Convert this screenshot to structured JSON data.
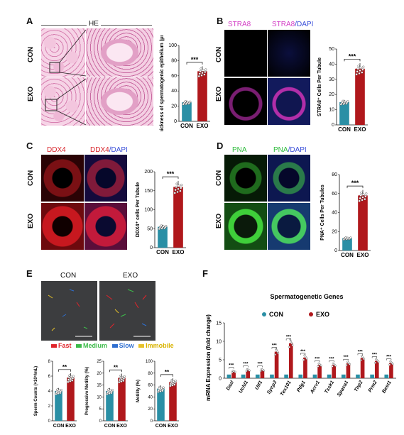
{
  "panels": {
    "A": {
      "label": "A",
      "header": "HE",
      "rows": [
        "CON",
        "EXO"
      ]
    },
    "B": {
      "label": "B",
      "cols": [
        "STRA8",
        "STRA8/DAPI"
      ],
      "rows": [
        "CON",
        "EXO"
      ]
    },
    "C": {
      "label": "C",
      "cols": [
        "DDX4",
        "DDX4/DAPI"
      ],
      "rows": [
        "CON",
        "EXO"
      ]
    },
    "D": {
      "label": "D",
      "cols": [
        "PNA",
        "PNA/DAPI"
      ],
      "rows": [
        "CON",
        "EXO"
      ]
    },
    "E": {
      "label": "E",
      "cols": [
        "CON",
        "EXO"
      ],
      "legend": [
        "Fast",
        "Medium",
        "Slow",
        "Immobile"
      ]
    },
    "F": {
      "label": "F"
    }
  },
  "colors": {
    "con": "#2a8fa5",
    "exo": "#b0181c",
    "fast": "#e0242b",
    "medium": "#3dbb4a",
    "slow": "#2f6fd0",
    "immobile": "#e7c22a"
  },
  "chart_data": [
    {
      "id": "A",
      "type": "bar",
      "ylabel": "Thickness of spermatogenic epithelium (μm)",
      "categories": [
        "CON",
        "EXO"
      ],
      "values": [
        25,
        66
      ],
      "ylim": [
        0,
        100
      ],
      "yticks": [
        0,
        20,
        40,
        60,
        80,
        100
      ],
      "sig": "***"
    },
    {
      "id": "B",
      "type": "bar",
      "ylabel": "STRA8⁺ Cells Per Tubule",
      "categories": [
        "CON",
        "EXO"
      ],
      "values": [
        15,
        37
      ],
      "ylim": [
        0,
        50
      ],
      "yticks": [
        0,
        10,
        20,
        30,
        40,
        50
      ],
      "sig": "***"
    },
    {
      "id": "C",
      "type": "bar",
      "ylabel": "DDX4⁺ cells Per Tubule",
      "categories": [
        "CON",
        "EXO"
      ],
      "values": [
        55,
        160
      ],
      "ylim": [
        0,
        200
      ],
      "yticks": [
        0,
        50,
        100,
        150,
        200
      ],
      "sig": "***"
    },
    {
      "id": "D",
      "type": "bar",
      "ylabel": "PNA⁺ Cells Per Tubules",
      "categories": [
        "CON",
        "EXO"
      ],
      "values": [
        13,
        58
      ],
      "ylim": [
        0,
        80
      ],
      "yticks": [
        0,
        20,
        40,
        60,
        80
      ],
      "sig": "***"
    },
    {
      "id": "E1",
      "type": "bar",
      "ylabel": "Sperm Counts (×10⁶/mL)",
      "categories": [
        "CON",
        "EXO"
      ],
      "values": [
        4,
        5.8
      ],
      "ylim": [
        0,
        8
      ],
      "yticks": [
        0,
        2,
        4,
        6,
        8
      ],
      "sig": "**"
    },
    {
      "id": "E2",
      "type": "bar",
      "ylabel": "Progressive Motility (%)",
      "categories": [
        "CON",
        "EXO"
      ],
      "values": [
        12.5,
        18
      ],
      "ylim": [
        0,
        25
      ],
      "yticks": [
        0,
        5,
        10,
        15,
        20,
        25
      ],
      "sig": "**"
    },
    {
      "id": "E3",
      "type": "bar",
      "ylabel": "Motility (%)",
      "categories": [
        "CON",
        "EXO"
      ],
      "values": [
        54,
        65
      ],
      "ylim": [
        0,
        100
      ],
      "yticks": [
        0,
        20,
        40,
        60,
        80,
        100
      ],
      "sig": "**"
    },
    {
      "id": "F",
      "type": "bar",
      "title": "Spermatogenetic Genes",
      "ylabel": "mRNA Expression (fold change)",
      "ylim": [
        0,
        15
      ],
      "yticks": [
        0,
        5,
        10,
        15
      ],
      "categories": [
        "Dazl",
        "Uchl1",
        "Utf1",
        "Sycp3",
        "Tex101",
        "Ptlg1",
        "Acrv1",
        "Tssk1",
        "Spaca1",
        "Tnp2",
        "Prm2",
        "Best1"
      ],
      "series": [
        {
          "name": "CON",
          "values": [
            1,
            1,
            1,
            1,
            1,
            1,
            1,
            1,
            1,
            1,
            1,
            1
          ]
        },
        {
          "name": "EXO",
          "values": [
            1.8,
            2.2,
            2.2,
            7.2,
            9.5,
            5.6,
            3.6,
            3.6,
            4.0,
            5.5,
            4.7,
            4.1
          ]
        }
      ],
      "sig": [
        "***",
        "***",
        "***",
        "***",
        "***",
        "***",
        "***",
        "***",
        "***",
        "***",
        "***",
        "***"
      ],
      "legend": [
        "CON",
        "EXO"
      ]
    }
  ]
}
